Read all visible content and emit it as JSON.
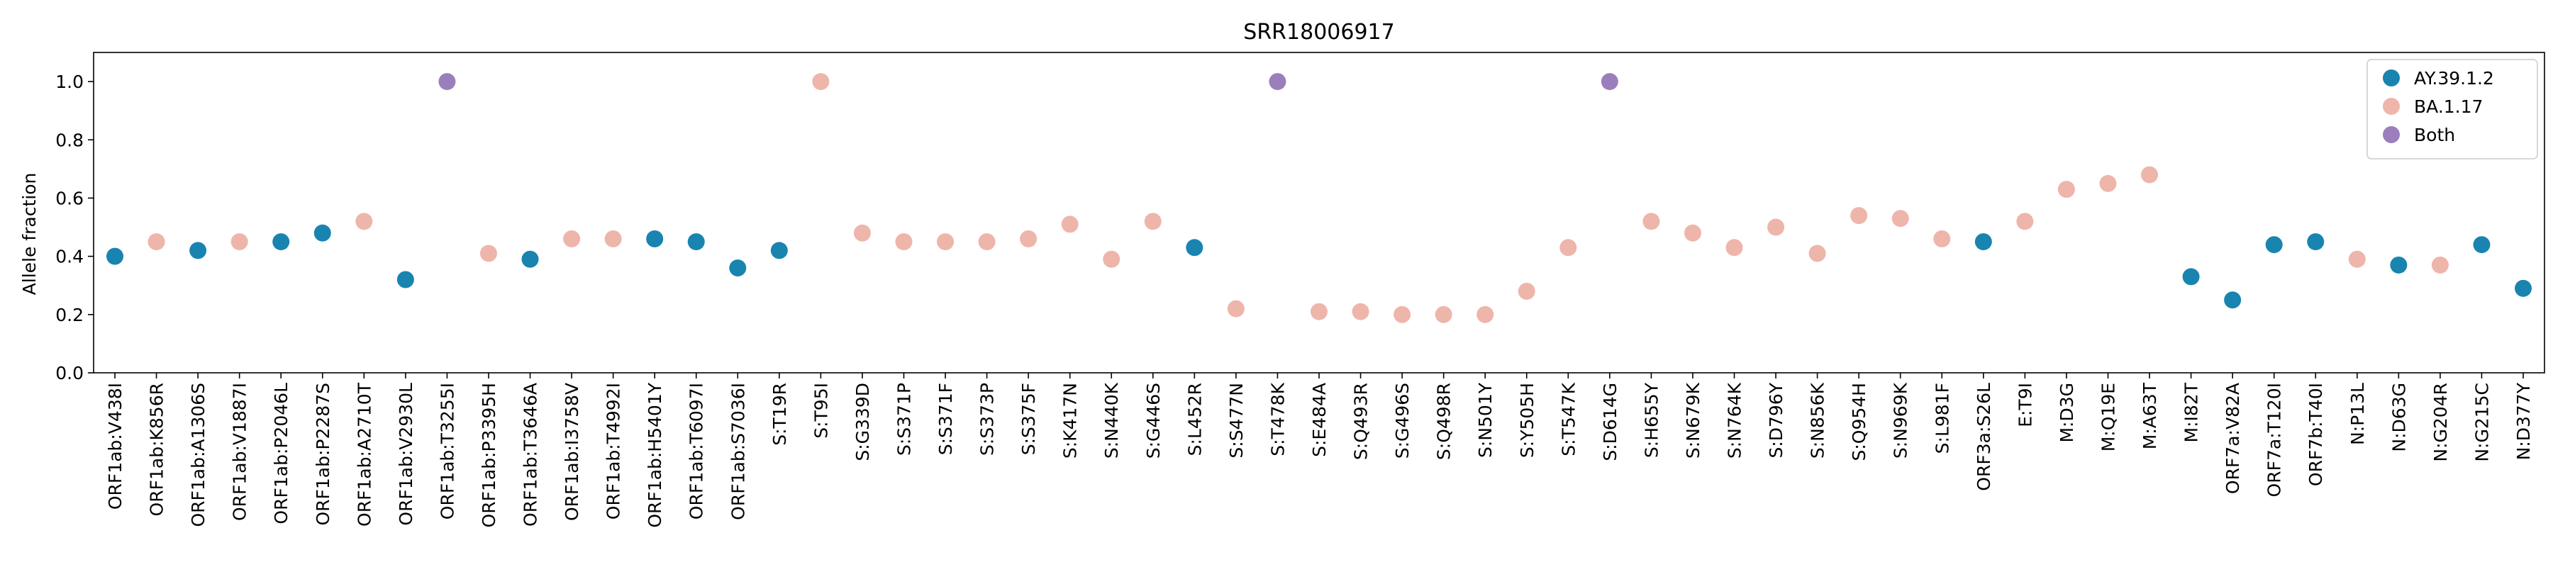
{
  "chart_data": {
    "type": "scatter",
    "title": "SRR18006917",
    "xlabel": "",
    "ylabel": "Allele fraction",
    "ylim": [
      0,
      1.1
    ],
    "yticks": [
      "0.0",
      "0.2",
      "0.4",
      "0.6",
      "0.8",
      "1.0"
    ],
    "grid": false,
    "legend_position": "top-right",
    "series": [
      {
        "name": "AY.39.1.2",
        "color": "#1984b0"
      },
      {
        "name": "BA.1.17",
        "color": "#eeb5ab"
      },
      {
        "name": "Both",
        "color": "#9b7fbc"
      }
    ],
    "categories": [
      "ORF1ab:V438I",
      "ORF1ab:K856R",
      "ORF1ab:A1306S",
      "ORF1ab:V1887I",
      "ORF1ab:P2046L",
      "ORF1ab:P2287S",
      "ORF1ab:A2710T",
      "ORF1ab:V2930L",
      "ORF1ab:T3255I",
      "ORF1ab:P3395H",
      "ORF1ab:T3646A",
      "ORF1ab:I3758V",
      "ORF1ab:T4992I",
      "ORF1ab:H5401Y",
      "ORF1ab:T6097I",
      "ORF1ab:S7036I",
      "S:T19R",
      "S:T95I",
      "S:G339D",
      "S:S371P",
      "S:S371F",
      "S:S373P",
      "S:S375F",
      "S:K417N",
      "S:N440K",
      "S:G446S",
      "S:L452R",
      "S:S477N",
      "S:T478K",
      "S:E484A",
      "S:Q493R",
      "S:G496S",
      "S:Q498R",
      "S:N501Y",
      "S:Y505H",
      "S:T547K",
      "S:D614G",
      "S:H655Y",
      "S:N679K",
      "S:N764K",
      "S:D796Y",
      "S:N856K",
      "S:Q954H",
      "S:N969K",
      "S:L981F",
      "ORF3a:S26L",
      "E:T9I",
      "M:D3G",
      "M:Q19E",
      "M:A63T",
      "M:I82T",
      "ORF7a:V82A",
      "ORF7a:T120I",
      "ORF7b:T40I",
      "N:P13L",
      "N:D63G",
      "N:G204R",
      "N:G215C",
      "N:D377Y"
    ],
    "values": [
      0.4,
      0.45,
      0.42,
      0.45,
      0.45,
      0.48,
      0.52,
      0.32,
      1.0,
      0.41,
      0.39,
      0.46,
      0.46,
      0.46,
      0.45,
      0.36,
      0.42,
      1.0,
      0.48,
      0.45,
      0.45,
      0.45,
      0.46,
      0.51,
      0.39,
      0.52,
      0.43,
      0.22,
      1.0,
      0.21,
      0.21,
      0.2,
      0.2,
      0.2,
      0.28,
      0.43,
      1.0,
      0.52,
      0.48,
      0.43,
      0.5,
      0.41,
      0.54,
      0.53,
      0.46,
      0.45,
      0.52,
      0.63,
      0.65,
      0.68,
      0.33,
      0.25,
      0.44,
      0.45,
      0.39,
      0.37,
      0.37,
      0.44,
      0.29
    ],
    "groups": [
      0,
      1,
      0,
      1,
      0,
      0,
      1,
      0,
      2,
      1,
      0,
      1,
      1,
      0,
      0,
      0,
      0,
      1,
      1,
      1,
      1,
      1,
      1,
      1,
      1,
      1,
      0,
      1,
      2,
      1,
      1,
      1,
      1,
      1,
      1,
      1,
      2,
      1,
      1,
      1,
      1,
      1,
      1,
      1,
      1,
      0,
      1,
      1,
      1,
      1,
      0,
      0,
      0,
      0,
      1,
      0,
      1,
      0,
      0
    ]
  }
}
